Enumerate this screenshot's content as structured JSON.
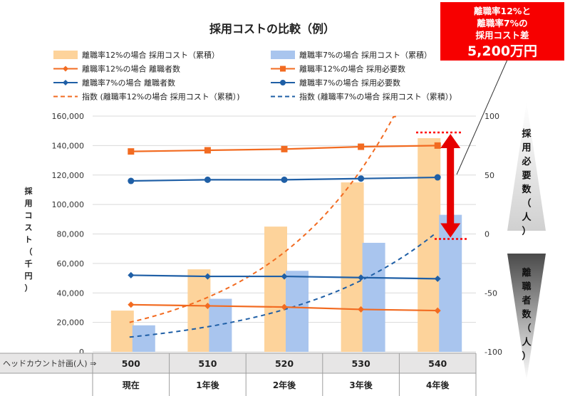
{
  "chart_data": {
    "type": "bar",
    "title": "採用コストの比較（例）",
    "ylabel": "採用コスト（千円）",
    "ylim": [
      0,
      160000
    ],
    "yticks": [
      0,
      20000,
      40000,
      60000,
      80000,
      100000,
      120000,
      140000,
      160000
    ],
    "ytick_labels": [
      "0",
      "20,000",
      "40,000",
      "60,000",
      "80,000",
      "100,000",
      "120,000",
      "140,000",
      "160,000"
    ],
    "y2lim": [
      -100,
      100
    ],
    "y2ticks": [
      -100,
      -50,
      0,
      50,
      100
    ],
    "y2label_top": "採用必要数（人）",
    "y2label_bottom": "離職者数（人）",
    "headcount_label": "ヘッドカウント計画(人) ⇒",
    "headcount": [
      "500",
      "510",
      "520",
      "530",
      "540"
    ],
    "categories": [
      "現在",
      "1年後",
      "2年後",
      "3年後",
      "4年後"
    ],
    "bar_series": [
      {
        "name": "離職率12%の場合 採用コスト（累積）",
        "values": [
          28000,
          56000,
          85000,
          115000,
          145000
        ],
        "color": "#fdd39b"
      },
      {
        "name": "離職率7%の場合 採用コスト（累積）",
        "values": [
          18000,
          36000,
          55000,
          74000,
          93000
        ],
        "color": "#a9c5ee"
      }
    ],
    "line_series": [
      {
        "name": "離職率12%の場合 離職者数",
        "values": [
          -60,
          -61,
          -62,
          -64,
          -65
        ],
        "color": "#f26b21",
        "marker": "diamond"
      },
      {
        "name": "離職率12%の場合 採用必要数",
        "values": [
          70,
          71,
          72,
          74,
          75
        ],
        "color": "#f26b21",
        "marker": "square"
      },
      {
        "name": "離職率7%の場合 離職者数",
        "values": [
          -35,
          -36,
          -36,
          -37,
          -38
        ],
        "color": "#1f5fa6",
        "marker": "diamond"
      },
      {
        "name": "離職率7%の場合 採用必要数",
        "values": [
          45,
          46,
          46,
          47,
          48
        ],
        "color": "#1f5fa6",
        "marker": "circle"
      }
    ],
    "trend_series": [
      {
        "name": "指数 (離職率12%の場合 採用コスト（累積）)",
        "start": 20000,
        "growth": 1.82,
        "color": "#f26b21"
      },
      {
        "name": "指数 (離職率7%の場合 採用コスト（累積）)",
        "start": 10000,
        "growth": 1.68,
        "color": "#1f5fa6"
      }
    ]
  },
  "callout": {
    "line1": "離職率12%と",
    "line2": "離職率7%の",
    "line3": "採用コスト差",
    "value": "5,200万円"
  }
}
